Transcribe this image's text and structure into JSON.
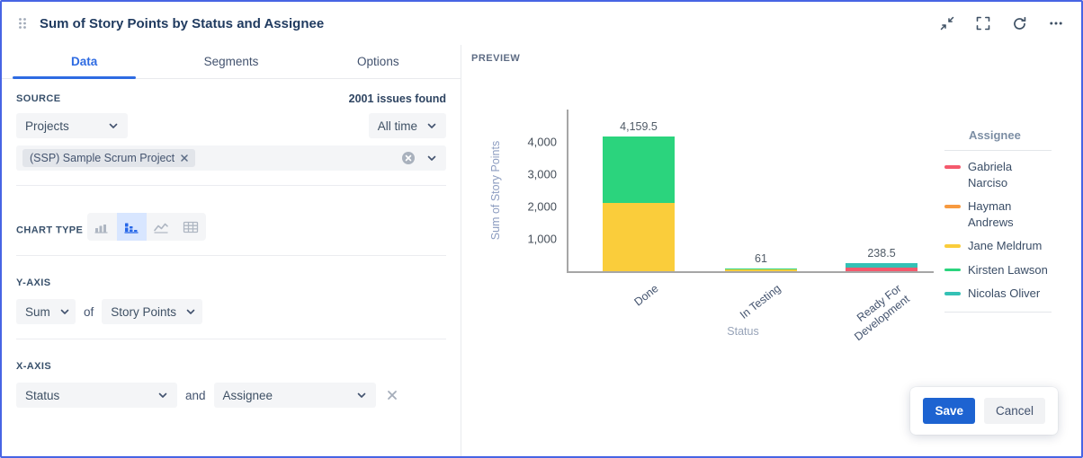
{
  "header": {
    "title": "Sum of Story Points by Status and Assignee"
  },
  "tabs": [
    {
      "label": "Data",
      "active": true
    },
    {
      "label": "Segments",
      "active": false
    },
    {
      "label": "Options",
      "active": false
    }
  ],
  "source": {
    "label": "SOURCE",
    "issues_found": "2001 issues found",
    "projects_dropdown": "Projects",
    "time_dropdown": "All time",
    "selected_project": "(SSP) Sample Scrum Project"
  },
  "chart_type": {
    "label": "CHART TYPE",
    "options": [
      "bar-chart",
      "stacked-bar-chart",
      "line-chart",
      "table"
    ],
    "selected": "stacked-bar-chart"
  },
  "y_axis": {
    "label": "Y-AXIS",
    "aggregation": "Sum",
    "of_text": "of",
    "field": "Story Points"
  },
  "x_axis": {
    "label": "X-AXIS",
    "primary": "Status",
    "and_text": "and",
    "secondary": "Assignee"
  },
  "preview": {
    "label": "PREVIEW"
  },
  "actions": {
    "save": "Save",
    "cancel": "Cancel"
  },
  "accent_colors": {
    "active_tab": "#2E6BE2",
    "save_button": "#1D63D1",
    "widget_border": "#4764E4"
  },
  "chart_data": {
    "type": "bar",
    "stacked": true,
    "categories": [
      "Done",
      "In Testing",
      "Ready For Development"
    ],
    "series": [
      {
        "name": "Gabriela Narciso",
        "color": "#F4596C",
        "values": [
          0,
          0,
          120
        ]
      },
      {
        "name": "Hayman Andrews",
        "color": "#F79A40",
        "values": [
          0,
          0,
          0
        ]
      },
      {
        "name": "Jane Meldrum",
        "color": "#FACD3B",
        "values": [
          2100,
          10,
          0
        ]
      },
      {
        "name": "Kirsten Lawson",
        "color": "#2BD47D",
        "values": [
          2059.5,
          51,
          0
        ]
      },
      {
        "name": "Nicolas Oliver",
        "color": "#34C1B5",
        "values": [
          0,
          0,
          118.5
        ]
      }
    ],
    "totals_labels": [
      "4,159.5",
      "61",
      "238.5"
    ],
    "totals": [
      4159.5,
      61,
      238.5
    ],
    "xlabel": "Status",
    "ylabel": "Sum of Story Points",
    "ylim": [
      0,
      5000
    ],
    "yticks": [
      1000,
      2000,
      3000,
      4000
    ],
    "grid": false,
    "legend_title": "Assignee",
    "legend_position": "right"
  }
}
